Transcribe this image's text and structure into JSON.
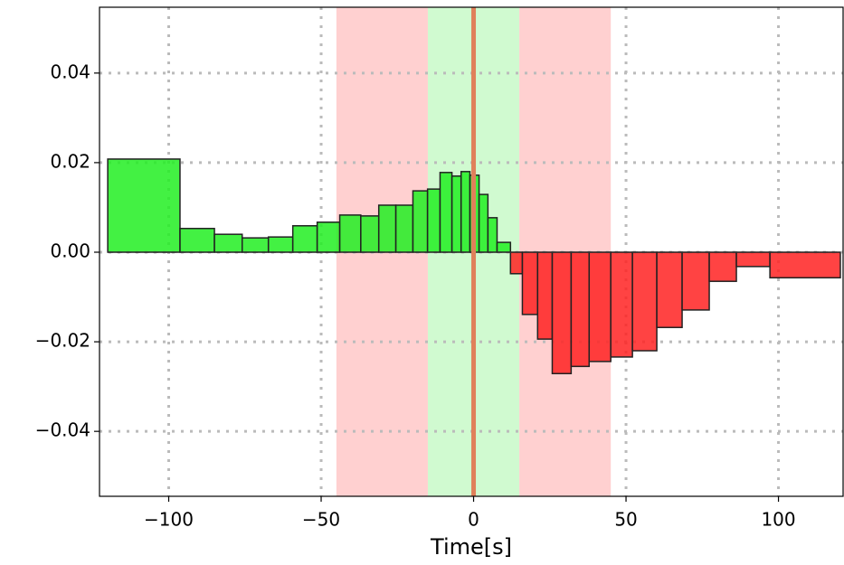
{
  "chart_data": {
    "type": "histogram",
    "xlabel": "Time[s]",
    "bins": [
      -120,
      -96.3,
      -85,
      -75.9,
      -67.3,
      -59.3,
      -51.3,
      -43.9,
      -37,
      -31.1,
      -25.5,
      -19.9,
      -15.1,
      -11,
      -7.1,
      -4.1,
      -1.2,
      1.8,
      4.7,
      7.7,
      12.1,
      16,
      21,
      25.8,
      32,
      37.9,
      45,
      52.1,
      60.1,
      68.4,
      77.3,
      86.2,
      97.2,
      120.3
    ],
    "values": [
      0.0208,
      0.0053,
      0.004,
      0.0032,
      0.0034,
      0.0059,
      0.0067,
      0.0083,
      0.0081,
      0.0105,
      0.0105,
      0.0137,
      0.0141,
      0.0178,
      0.017,
      0.018,
      0.0172,
      0.0129,
      0.0077,
      0.0022,
      -0.0048,
      -0.0139,
      -0.0194,
      -0.0271,
      -0.0255,
      -0.0244,
      -0.0234,
      -0.022,
      -0.0168,
      -0.0129,
      -0.0065,
      -0.0032,
      -0.0057
    ],
    "positive_color": "#22ee22",
    "negative_color": "#ff2222",
    "spans": [
      {
        "from": -45,
        "to": -15,
        "color": "#ffd0d0"
      },
      {
        "from": -15,
        "to": 15,
        "color": "#d0fad0"
      },
      {
        "from": 15,
        "to": 45,
        "color": "#ffd0d0"
      }
    ],
    "vline": {
      "x": 0,
      "color": "#e0805a"
    },
    "hline": 0,
    "xlim": [
      -122.7,
      121.2
    ],
    "ylim": [
      -0.0545,
      0.0547
    ],
    "xticks": [
      {
        "value": -100,
        "label": "−100"
      },
      {
        "value": -50,
        "label": "−50"
      },
      {
        "value": 0,
        "label": "0"
      },
      50,
      100
    ],
    "yticks": [
      {
        "value": -0.04,
        "label": "−0.04"
      },
      {
        "value": -0.02,
        "label": "−0.02"
      },
      {
        "value": 0,
        "label": "0.00"
      },
      0.02,
      0.04
    ],
    "grid": true
  }
}
